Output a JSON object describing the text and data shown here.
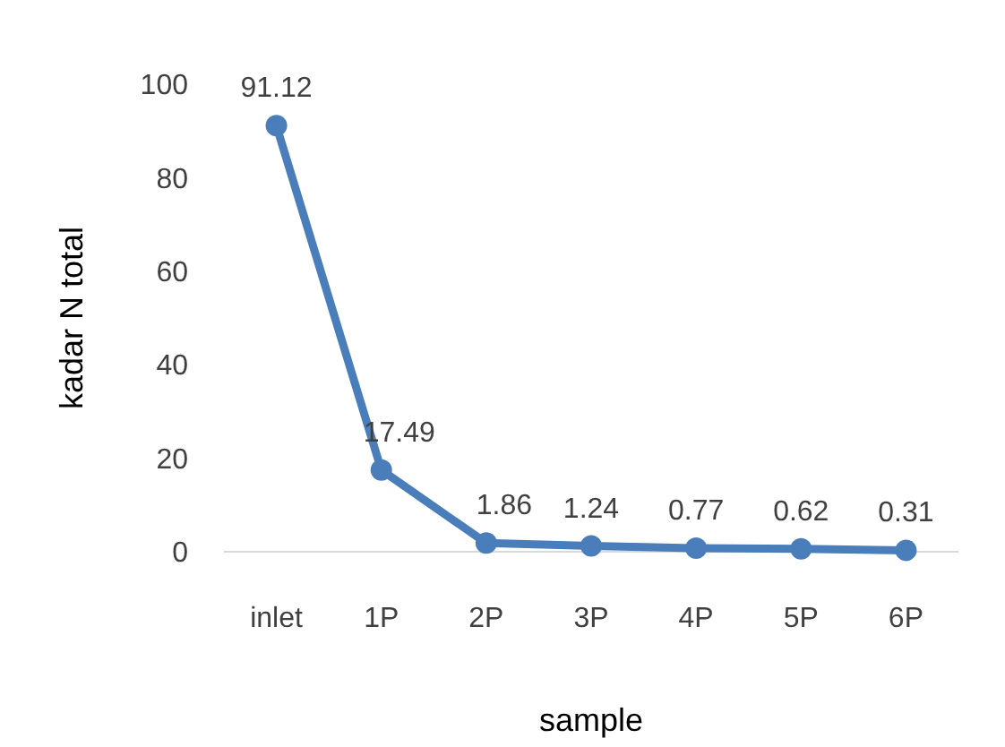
{
  "chart_data": {
    "type": "line",
    "xlabel": "sample",
    "ylabel": "kadar N total",
    "categories": [
      "inlet",
      "1P",
      "2P",
      "3P",
      "4P",
      "5P",
      "6P"
    ],
    "series": [
      {
        "color": "#4a7ebb",
        "values": [
          91.12,
          17.49,
          1.86,
          1.24,
          0.77,
          0.62,
          0.31
        ]
      }
    ],
    "ylim": [
      0,
      100
    ],
    "yticks": [
      0,
      20,
      40,
      60,
      80,
      100
    ],
    "grid": false,
    "marker": "circle",
    "line_style": "solid",
    "data_labels": true
  }
}
